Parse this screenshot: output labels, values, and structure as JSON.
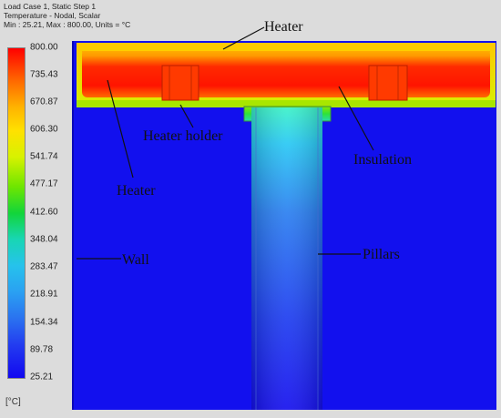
{
  "header": {
    "line1": "Load Case 1, Static Step 1",
    "line2": "Temperature - Nodal, Scalar",
    "line3": "Min : 25.21, Max : 800.00, Units = °C"
  },
  "legend": {
    "ticks": [
      "800.00",
      "735.43",
      "670.87",
      "606.30",
      "541.74",
      "477.17",
      "412.60",
      "348.04",
      "283.47",
      "218.91",
      "154.34",
      "89.78",
      "25.21"
    ],
    "unit": "[°C]",
    "min": 25.21,
    "max": 800.0
  },
  "annotations": {
    "heater_top": "Heater",
    "heater_holder": "Heater holder",
    "insulation": "Insulation",
    "heater_left": "Heater",
    "wall": "Wall",
    "pillars": "Pillars"
  },
  "colors": {
    "background_field": "#1212ee",
    "hot": "#ff1a00",
    "warm": "#ffb300",
    "mid": "#c9f000",
    "cool": "#20d8d0"
  }
}
